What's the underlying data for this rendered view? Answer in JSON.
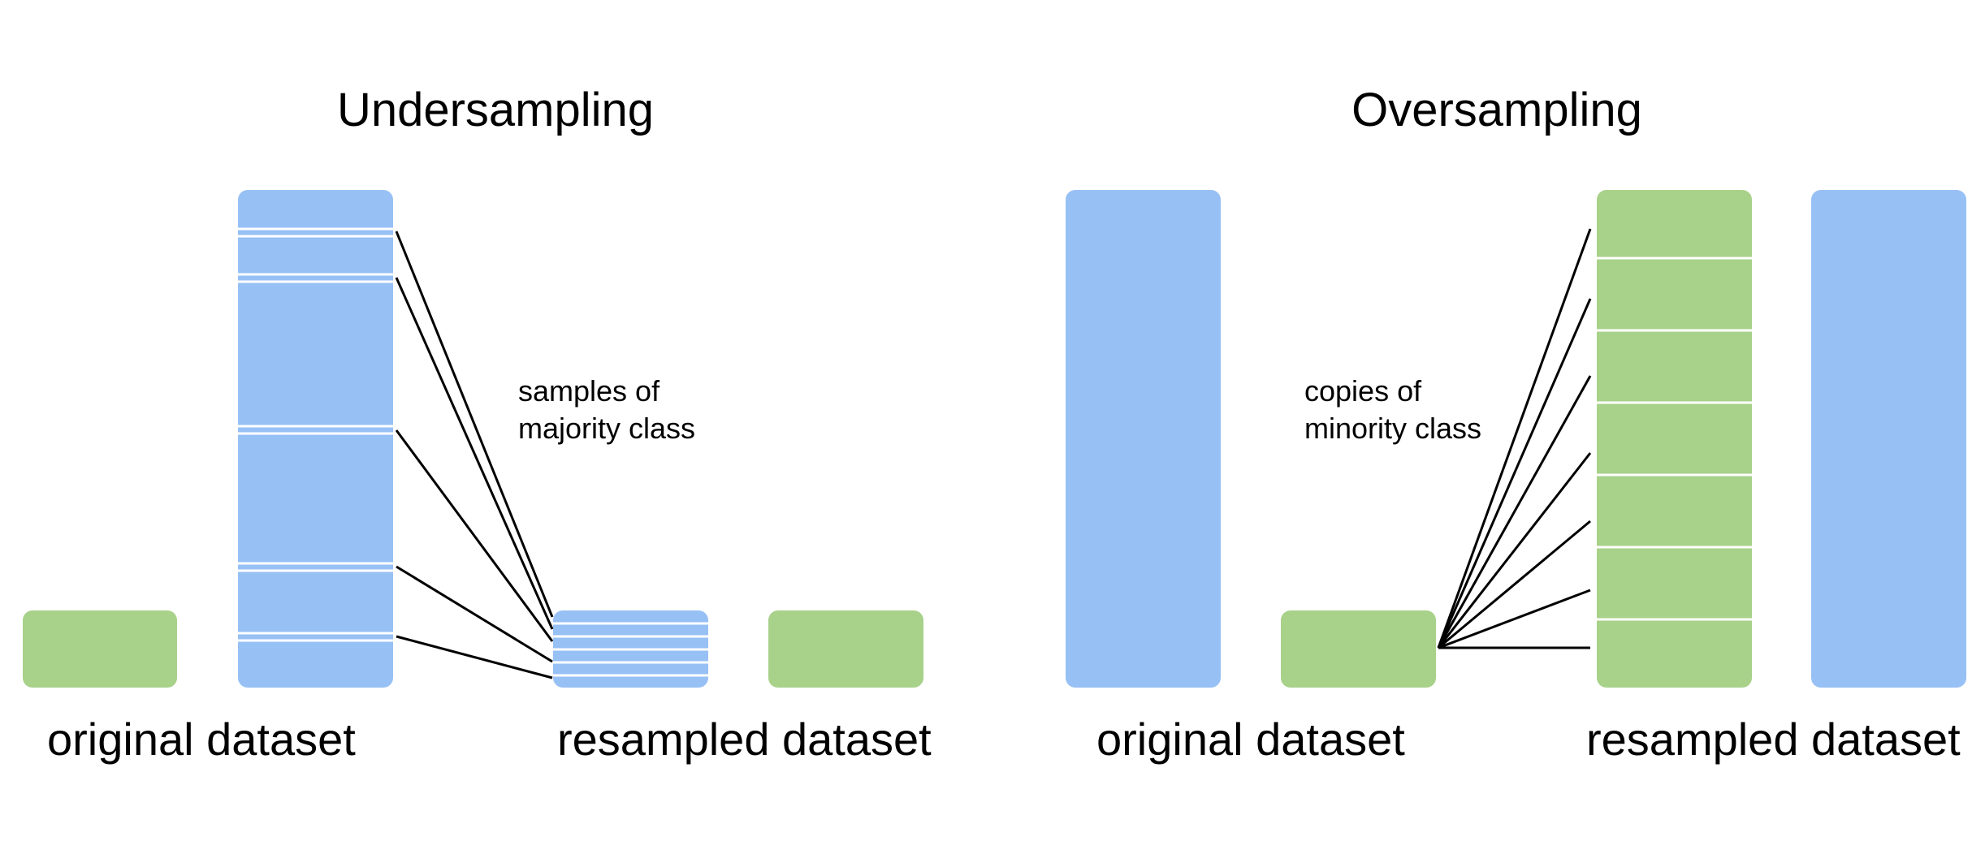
{
  "colors": {
    "majority_class": "#97c0f5",
    "minority_class": "#a8d18a",
    "background": "#ffffff",
    "stripe": "#ffffff",
    "connector": "#000000"
  },
  "undersampling": {
    "title": "Undersampling",
    "original_label": "original dataset",
    "resampled_label": "resampled dataset",
    "annotation_lines": [
      "samples of",
      "majority class"
    ]
  },
  "oversampling": {
    "title": "Oversampling",
    "original_label": "original dataset",
    "resampled_label": "resampled dataset",
    "annotation_lines": [
      "copies of",
      "minority class"
    ]
  }
}
